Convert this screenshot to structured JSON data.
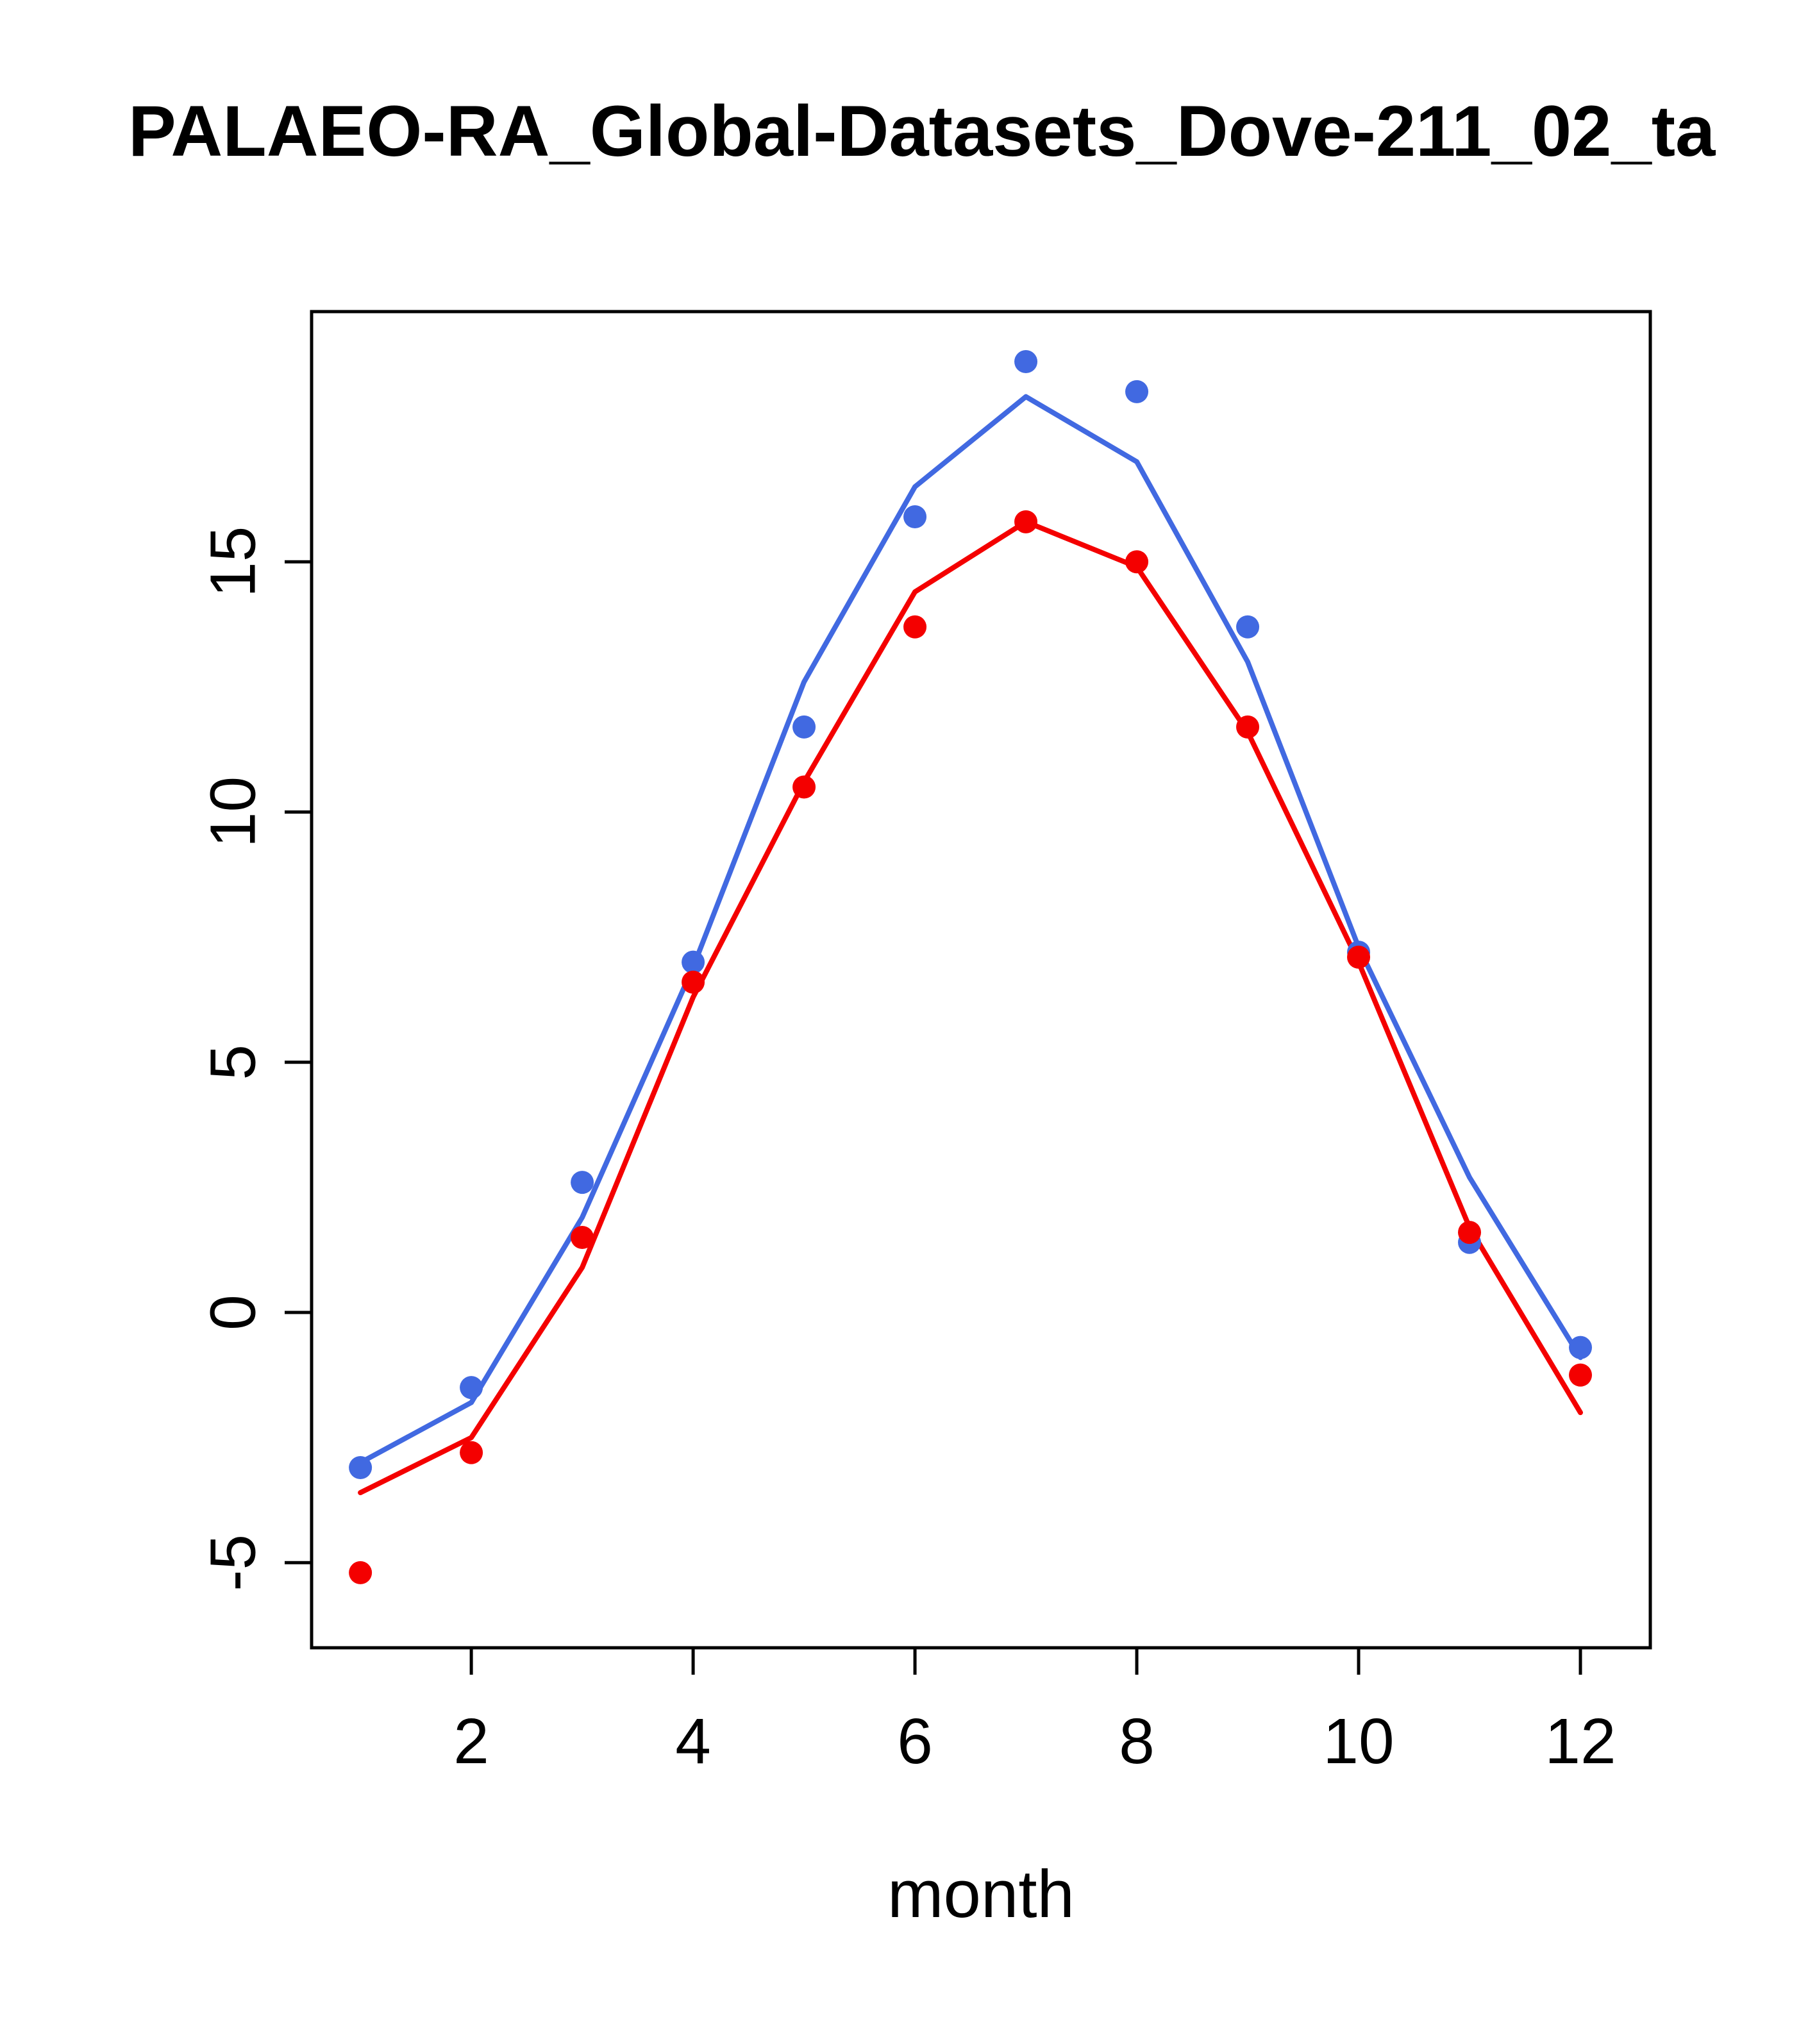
{
  "page": {
    "background": "#ffffff"
  },
  "chart_data": {
    "type": "line",
    "title": "PALAEO-RA_Global-Datasets_Dove-211_02_ta",
    "xlabel": "month",
    "ylabel": "",
    "grid": false,
    "legend": "none",
    "x": [
      1,
      2,
      3,
      4,
      5,
      6,
      7,
      8,
      9,
      10,
      11,
      12
    ],
    "xticks": [
      2,
      4,
      6,
      8,
      10,
      12
    ],
    "yticks": [
      -5,
      0,
      5,
      10,
      15
    ],
    "xlim": [
      0.56,
      12.63
    ],
    "ylim": [
      -6.7,
      20.0
    ],
    "colors": {
      "blue": "#4169E1",
      "red": "#F40000",
      "axis": "#000000"
    },
    "series": [
      {
        "name": "blue-line",
        "style": "line",
        "color": "#4169E1",
        "values": [
          -3.0,
          -1.8,
          1.9,
          6.9,
          12.6,
          16.5,
          18.3,
          17.0,
          13.0,
          7.3,
          2.7,
          -0.9
        ]
      },
      {
        "name": "blue-points",
        "style": "points",
        "color": "#4169E1",
        "values": [
          -3.1,
          -1.5,
          2.6,
          7.0,
          11.7,
          15.9,
          19.0,
          18.4,
          13.7,
          7.2,
          1.4,
          -0.7
        ]
      },
      {
        "name": "red-line",
        "style": "line",
        "color": "#F40000",
        "values": [
          -3.6,
          -2.5,
          0.9,
          6.3,
          10.6,
          14.4,
          15.8,
          14.9,
          11.6,
          7.0,
          1.7,
          -2.0
        ]
      },
      {
        "name": "red-points",
        "style": "points",
        "color": "#F40000",
        "values": [
          -5.2,
          -2.8,
          1.5,
          6.6,
          10.5,
          13.7,
          15.8,
          15.0,
          11.7,
          7.1,
          1.6,
          -1.25
        ]
      }
    ]
  }
}
